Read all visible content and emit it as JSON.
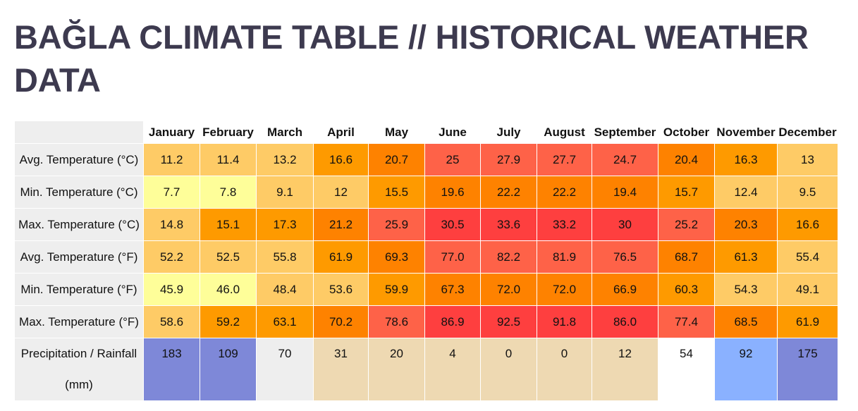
{
  "page": {
    "title": "BAĞLA CLIMATE TABLE // HISTORICAL WEATHER DATA"
  },
  "table": {
    "months": [
      "January",
      "February",
      "March",
      "April",
      "May",
      "June",
      "July",
      "August",
      "September",
      "October",
      "November",
      "December"
    ],
    "rows": [
      {
        "label": "Avg. Temperature (°C)",
        "values": [
          "11.2",
          "11.4",
          "13.2",
          "16.6",
          "20.7",
          "25",
          "27.9",
          "27.7",
          "24.7",
          "20.4",
          "16.3",
          "13"
        ],
        "colors": [
          "#fecb66",
          "#fecb66",
          "#fecb66",
          "#fe9a00",
          "#fe8200",
          "#fe6248",
          "#fe6248",
          "#fe6248",
          "#fe6248",
          "#fe8200",
          "#fe9a00",
          "#fecb66"
        ]
      },
      {
        "label": "Min. Temperature (°C)",
        "values": [
          "7.7",
          "7.8",
          "9.1",
          "12",
          "15.5",
          "19.6",
          "22.2",
          "22.2",
          "19.4",
          "15.7",
          "12.4",
          "9.5"
        ],
        "colors": [
          "#fefe99",
          "#fefe99",
          "#fecb66",
          "#fecb66",
          "#fe9a00",
          "#fe8200",
          "#fe8200",
          "#fe8200",
          "#fe8200",
          "#fe9a00",
          "#fecb66",
          "#fecb66"
        ]
      },
      {
        "label": "Max. Temperature (°C)",
        "values": [
          "14.8",
          "15.1",
          "17.3",
          "21.2",
          "25.9",
          "30.5",
          "33.6",
          "33.2",
          "30",
          "25.2",
          "20.3",
          "16.6"
        ],
        "colors": [
          "#fecb66",
          "#fe9a00",
          "#fe9a00",
          "#fe8200",
          "#fe6248",
          "#fe3f3f",
          "#fe3f3f",
          "#fe3f3f",
          "#fe3f3f",
          "#fe6248",
          "#fe8200",
          "#fe9a00"
        ]
      },
      {
        "label": "Avg. Temperature (°F)",
        "values": [
          "52.2",
          "52.5",
          "55.8",
          "61.9",
          "69.3",
          "77.0",
          "82.2",
          "81.9",
          "76.5",
          "68.7",
          "61.3",
          "55.4"
        ],
        "colors": [
          "#fecb66",
          "#fecb66",
          "#fecb66",
          "#fe9a00",
          "#fe8200",
          "#fe6248",
          "#fe6248",
          "#fe6248",
          "#fe6248",
          "#fe8200",
          "#fe9a00",
          "#fecb66"
        ]
      },
      {
        "label": "Min. Temperature (°F)",
        "values": [
          "45.9",
          "46.0",
          "48.4",
          "53.6",
          "59.9",
          "67.3",
          "72.0",
          "72.0",
          "66.9",
          "60.3",
          "54.3",
          "49.1"
        ],
        "colors": [
          "#fefe99",
          "#fefe99",
          "#fecb66",
          "#fecb66",
          "#fe9a00",
          "#fe8200",
          "#fe8200",
          "#fe8200",
          "#fe8200",
          "#fe9a00",
          "#fecb66",
          "#fecb66"
        ]
      },
      {
        "label": "Max. Temperature (°F)",
        "values": [
          "58.6",
          "59.2",
          "63.1",
          "70.2",
          "78.6",
          "86.9",
          "92.5",
          "91.8",
          "86.0",
          "77.4",
          "68.5",
          "61.9"
        ],
        "colors": [
          "#fecb66",
          "#fe9a00",
          "#fe9a00",
          "#fe8200",
          "#fe6248",
          "#fe3f3f",
          "#fe3f3f",
          "#fe3f3f",
          "#fe3f3f",
          "#fe6248",
          "#fe8200",
          "#fe9a00"
        ]
      }
    ],
    "precip": {
      "label": "Precipitation / Rainfall (mm)",
      "values": [
        "183",
        "109",
        "70",
        "31",
        "20",
        "4",
        "0",
        "0",
        "12",
        "54",
        "92",
        "175"
      ],
      "colors": [
        "#7e88d8",
        "#7e88d8",
        "#eeeeee",
        "#eed9b2",
        "#eed9b2",
        "#eed9b2",
        "#eed9b2",
        "#eed9b2",
        "#eed9b2",
        "#ffffff",
        "#8ab1ff",
        "#7e88d8"
      ]
    }
  }
}
